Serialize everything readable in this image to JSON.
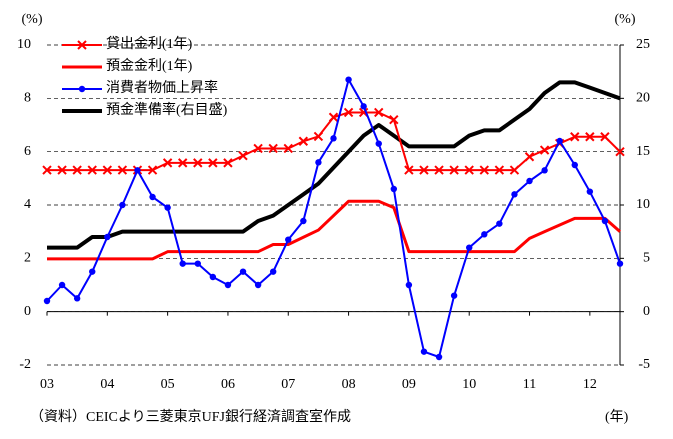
{
  "chart_data": {
    "type": "line",
    "y_unit_left": "(%)",
    "y_unit_right": "(%)",
    "x_unit": "(年)",
    "source": "（資料）CEICより三菱東京UFJ銀行経済調査室作成",
    "x": [
      2003,
      2003.25,
      2003.5,
      2003.75,
      2004,
      2004.25,
      2004.5,
      2004.75,
      2005,
      2005.25,
      2005.5,
      2005.75,
      2006,
      2006.25,
      2006.5,
      2006.75,
      2007,
      2007.25,
      2007.5,
      2007.75,
      2008,
      2008.25,
      2008.5,
      2008.75,
      2009,
      2009.25,
      2009.5,
      2009.75,
      2010,
      2010.25,
      2010.5,
      2010.75,
      2011,
      2011.25,
      2011.5,
      2011.75,
      2012,
      2012.25,
      2012.5
    ],
    "xlim": [
      2003,
      2012.5
    ],
    "xticks": [
      {
        "value": 2003,
        "label": "03"
      },
      {
        "value": 2004,
        "label": "04"
      },
      {
        "value": 2005,
        "label": "05"
      },
      {
        "value": 2006,
        "label": "06"
      },
      {
        "value": 2007,
        "label": "07"
      },
      {
        "value": 2008,
        "label": "08"
      },
      {
        "value": 2009,
        "label": "09"
      },
      {
        "value": 2010,
        "label": "10"
      },
      {
        "value": 2011,
        "label": "11"
      },
      {
        "value": 2012,
        "label": "12"
      }
    ],
    "ylim": [
      -2,
      10
    ],
    "yticks": [
      -2,
      0,
      2,
      4,
      6,
      8,
      10
    ],
    "y2lim": [
      -5,
      25
    ],
    "y2ticks": [
      -5,
      0,
      5,
      10,
      15,
      20,
      25
    ],
    "grid": true,
    "legend": "upper left",
    "series": [
      {
        "name": "貸出金利(1年)",
        "color": "#ff0000",
        "marker": "x",
        "values": [
          5.31,
          5.31,
          5.31,
          5.31,
          5.31,
          5.31,
          5.31,
          5.31,
          5.58,
          5.58,
          5.58,
          5.58,
          5.58,
          5.85,
          6.12,
          6.12,
          6.12,
          6.39,
          6.57,
          7.29,
          7.47,
          7.47,
          7.47,
          7.2,
          5.31,
          5.31,
          5.31,
          5.31,
          5.31,
          5.31,
          5.31,
          5.31,
          5.81,
          6.06,
          6.31,
          6.56,
          6.56,
          6.56,
          6.0
        ]
      },
      {
        "name": "預金金利(1年)",
        "color": "#ff0000",
        "marker": "none",
        "values": [
          1.98,
          1.98,
          1.98,
          1.98,
          1.98,
          1.98,
          1.98,
          1.98,
          2.25,
          2.25,
          2.25,
          2.25,
          2.25,
          2.25,
          2.25,
          2.52,
          2.52,
          2.79,
          3.06,
          3.6,
          4.14,
          4.14,
          4.14,
          3.9,
          2.25,
          2.25,
          2.25,
          2.25,
          2.25,
          2.25,
          2.25,
          2.25,
          2.75,
          3.0,
          3.25,
          3.5,
          3.5,
          3.5,
          3.0
        ]
      },
      {
        "name": "消費者物価上昇率",
        "color": "#0000ff",
        "marker": "circle",
        "values": [
          0.4,
          1.0,
          0.5,
          1.5,
          2.8,
          4.0,
          5.3,
          4.3,
          3.9,
          1.8,
          1.8,
          1.3,
          1.0,
          1.5,
          1.0,
          1.5,
          2.7,
          3.4,
          5.6,
          6.5,
          8.7,
          7.7,
          6.3,
          4.6,
          1.0,
          -1.5,
          -1.7,
          0.6,
          2.4,
          2.9,
          3.3,
          4.4,
          4.9,
          5.3,
          6.4,
          5.5,
          4.5,
          3.4,
          1.8
        ]
      },
      {
        "name": "預金準備率(右目盛)",
        "color": "#000000",
        "marker": "none",
        "axis": "y2",
        "values": [
          6,
          6,
          6,
          7,
          7,
          7.5,
          7.5,
          7.5,
          7.5,
          7.5,
          7.5,
          7.5,
          7.5,
          7.5,
          8.5,
          9,
          10,
          11,
          12,
          13.5,
          15,
          16.5,
          17.5,
          16.5,
          15.5,
          15.5,
          15.5,
          15.5,
          16.5,
          17,
          17,
          18,
          19,
          20.5,
          21.5,
          21.5,
          21,
          20.5,
          20
        ]
      }
    ]
  }
}
